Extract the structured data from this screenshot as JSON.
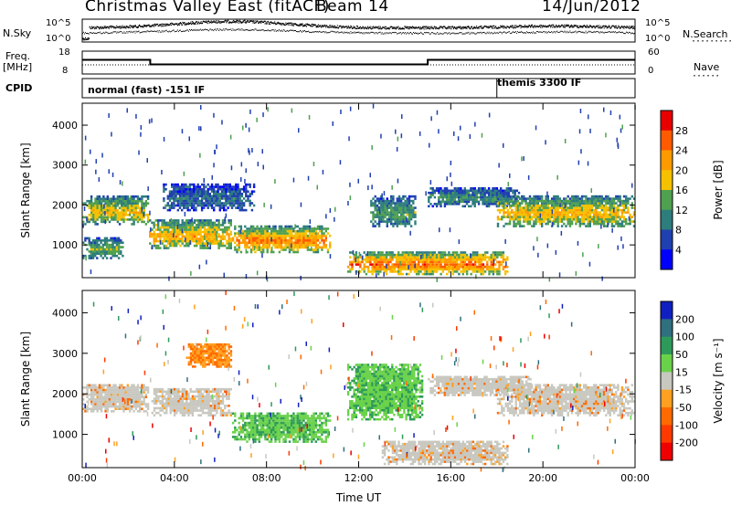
{
  "header": {
    "title": "Christmas Valley East (fitACF)",
    "beam": "Beam 14",
    "date": "14/Jun/2012"
  },
  "top_panels": {
    "nsky_label": "N.Sky",
    "nsearch_label": "N.Search",
    "freq_label_1": "Freq.",
    "freq_label_2": "[MHz]",
    "nave_label": "Nave",
    "cpid_label": "CPID",
    "nsky_ticks": [
      "10^5",
      "10^0"
    ],
    "nsearch_ticks": [
      "10^5",
      "10^0"
    ],
    "freq_ticks": [
      "18",
      "8"
    ],
    "nave_ticks": [
      "60",
      "0"
    ],
    "cpid_mode_1": "normal (fast) -151 IF",
    "cpid_mode_2": "themis 3300 IF"
  },
  "chart_data": [
    {
      "type": "line",
      "panel": "frequency",
      "ylabel": "Freq. [MHz]",
      "ylim": [
        8,
        18
      ],
      "x_hours": [
        0,
        2.95,
        2.95,
        15,
        15,
        24
      ],
      "values": [
        14.2,
        14.2,
        12.2,
        12.2,
        14.2,
        14.2
      ]
    },
    {
      "type": "heatmap",
      "panel": "power",
      "ylabel": "Slant Range [km]",
      "xlabel": "Time UT",
      "ylim": [
        180,
        4550
      ],
      "xlim": [
        0,
        24
      ],
      "y_ticks": [
        1000,
        2000,
        3000,
        4000
      ],
      "x_ticks": [
        "00:00",
        "04:00",
        "08:00",
        "12:00",
        "16:00",
        "20:00",
        "00:00"
      ],
      "colorbar": {
        "label": "Power [dB]",
        "ticks": [
          "28",
          "24",
          "20",
          "16",
          "12",
          "8",
          "4"
        ],
        "colors": [
          "#e60000",
          "#ff5a00",
          "#ff9a00",
          "#f5c000",
          "#4fa04f",
          "#2e7d7d",
          "#2040b0",
          "#0000ff"
        ]
      },
      "echo_regions": [
        {
          "t0": 0.0,
          "t1": 2.9,
          "r0": 1550,
          "r1": 2300,
          "level": 0.6
        },
        {
          "t0": 0.0,
          "t1": 1.8,
          "r0": 700,
          "r1": 1250,
          "level": 0.45
        },
        {
          "t0": 2.9,
          "t1": 6.5,
          "r0": 950,
          "r1": 1700,
          "level": 0.7
        },
        {
          "t0": 6.5,
          "t1": 10.8,
          "r0": 850,
          "r1": 1550,
          "level": 0.8
        },
        {
          "t0": 3.5,
          "t1": 7.5,
          "r0": 1900,
          "r1": 2600,
          "level": 0.25
        },
        {
          "t0": 11.5,
          "t1": 18.5,
          "r0": 300,
          "r1": 900,
          "level": 0.85
        },
        {
          "t0": 12.5,
          "t1": 14.5,
          "r0": 1500,
          "r1": 2300,
          "level": 0.4
        },
        {
          "t0": 15.0,
          "t1": 19.0,
          "r0": 2000,
          "r1": 2500,
          "level": 0.35
        },
        {
          "t0": 18.0,
          "t1": 24.0,
          "r0": 1500,
          "r1": 2300,
          "level": 0.65
        }
      ]
    },
    {
      "type": "heatmap",
      "panel": "velocity",
      "ylabel": "Slant Range [km]",
      "xlabel": "Time UT",
      "ylim": [
        180,
        4550
      ],
      "xlim": [
        0,
        24
      ],
      "y_ticks": [
        1000,
        2000,
        3000,
        4000
      ],
      "x_ticks": [
        "00:00",
        "04:00",
        "08:00",
        "12:00",
        "16:00",
        "20:00",
        "00:00"
      ],
      "colorbar": {
        "label": "Velocity [m s⁻¹]",
        "ticks": [
          "200",
          "100",
          "50",
          "15",
          "-15",
          "-50",
          "-100",
          "-200"
        ],
        "colors": [
          "#1020c0",
          "#2f6f7f",
          "#2e9a5a",
          "#6ad24a",
          "#c8c8c0",
          "#ffa020",
          "#ff6a00",
          "#ff3a00",
          "#ee0000"
        ]
      },
      "echo_regions": [
        {
          "t0": 0.0,
          "t1": 2.9,
          "r0": 1600,
          "r1": 2300,
          "vel": "ground"
        },
        {
          "t0": 3.0,
          "t1": 6.5,
          "r0": 1500,
          "r1": 2200,
          "vel": "ground"
        },
        {
          "t0": 6.5,
          "t1": 10.8,
          "r0": 850,
          "r1": 1600,
          "vel": "positive"
        },
        {
          "t0": 11.5,
          "t1": 14.8,
          "r0": 1400,
          "r1": 2800,
          "vel": "positive"
        },
        {
          "t0": 13.0,
          "t1": 18.5,
          "r0": 300,
          "r1": 900,
          "vel": "ground"
        },
        {
          "t0": 15.0,
          "t1": 19.5,
          "r0": 2000,
          "r1": 2500,
          "vel": "ground"
        },
        {
          "t0": 18.0,
          "t1": 24.0,
          "r0": 1500,
          "r1": 2300,
          "vel": "ground"
        },
        {
          "t0": 4.5,
          "t1": 6.5,
          "r0": 2700,
          "r1": 3300,
          "vel": "negative"
        }
      ]
    }
  ]
}
